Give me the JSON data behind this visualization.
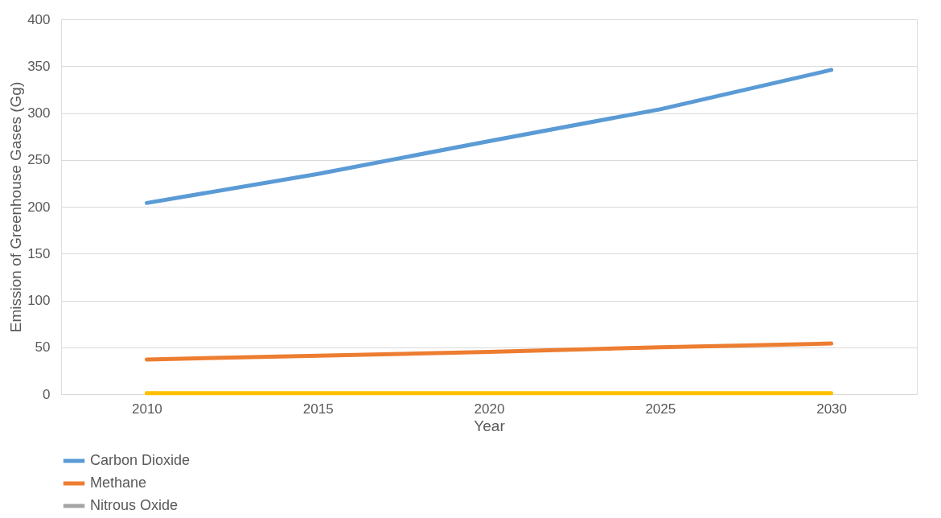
{
  "chart_data": {
    "type": "line",
    "xlabel": "Year",
    "ylabel": "Emission of Greenhouse Gases (Gg)",
    "categories": [
      "2010",
      "2015",
      "2020",
      "2025",
      "2030"
    ],
    "series": [
      {
        "name": "Carbon Dioxide",
        "color": "#5b9bd5",
        "values": [
          204,
          235,
          270,
          304,
          346
        ]
      },
      {
        "name": "Methane",
        "color": "#ed7d31",
        "values": [
          37,
          41,
          45,
          50,
          54
        ]
      },
      {
        "name": "Nitrous Oxide",
        "color": "#a5a5a5",
        "values": [
          null,
          null,
          null,
          null,
          null
        ]
      },
      {
        "color": "#ffc000",
        "values": [
          1,
          1,
          1,
          1,
          1
        ]
      }
    ],
    "ylim": [
      0,
      400
    ],
    "yticks": [
      0,
      50,
      100,
      150,
      200,
      250,
      300,
      350,
      400
    ],
    "grid": "y",
    "legend": "bottom left",
    "marker": "none",
    "line_style": "solid"
  }
}
